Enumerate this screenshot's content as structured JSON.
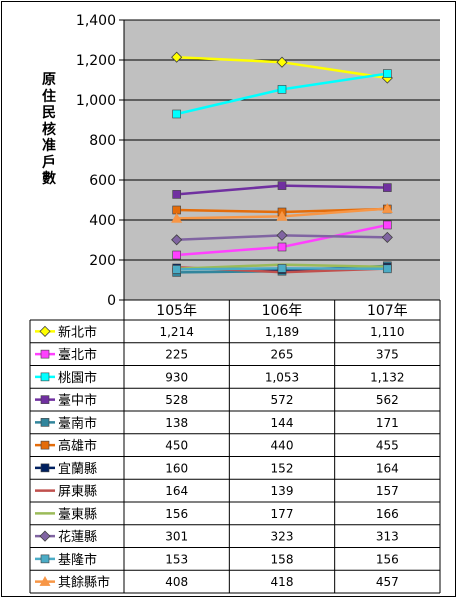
{
  "chart_data": {
    "type": "line",
    "ylabel": "原住民核准戶數",
    "ylim": [
      0,
      1400
    ],
    "yticks": [
      "0",
      "200",
      "400",
      "600",
      "800",
      "1,000",
      "1,200",
      "1,400"
    ],
    "categories": [
      "105年",
      "106年",
      "107年"
    ],
    "grid": true,
    "legend": "data-table",
    "series": [
      {
        "name": "新北市",
        "values": [
          1214,
          1189,
          1110
        ],
        "labels": [
          "1,214",
          "1,189",
          "1,110"
        ],
        "color": "#ffff00",
        "marker": "diamond"
      },
      {
        "name": "臺北市",
        "values": [
          225,
          265,
          375
        ],
        "labels": [
          "225",
          "265",
          "375"
        ],
        "color": "#ff40ff",
        "marker": "square"
      },
      {
        "name": "桃園市",
        "values": [
          930,
          1053,
          1132
        ],
        "labels": [
          "930",
          "1,053",
          "1,132"
        ],
        "color": "#00ffff",
        "marker": "square"
      },
      {
        "name": "臺中市",
        "values": [
          528,
          572,
          562
        ],
        "labels": [
          "528",
          "572",
          "562"
        ],
        "color": "#7030a0",
        "marker": "square"
      },
      {
        "name": "臺南市",
        "values": [
          138,
          144,
          171
        ],
        "labels": [
          "138",
          "144",
          "171"
        ],
        "color": "#31859c",
        "marker": "square"
      },
      {
        "name": "高雄市",
        "values": [
          450,
          440,
          455
        ],
        "labels": [
          "450",
          "440",
          "455"
        ],
        "color": "#e46c0a",
        "marker": "square"
      },
      {
        "name": "宜蘭縣",
        "values": [
          160,
          152,
          164
        ],
        "labels": [
          "160",
          "152",
          "164"
        ],
        "color": "#002060",
        "marker": "square"
      },
      {
        "name": "屏東縣",
        "values": [
          164,
          139,
          157
        ],
        "labels": [
          "164",
          "139",
          "157"
        ],
        "color": "#c0504d",
        "marker": "none"
      },
      {
        "name": "臺東縣",
        "values": [
          156,
          177,
          166
        ],
        "labels": [
          "156",
          "177",
          "166"
        ],
        "color": "#9bbb59",
        "marker": "none"
      },
      {
        "name": "花蓮縣",
        "values": [
          301,
          323,
          313
        ],
        "labels": [
          "301",
          "323",
          "313"
        ],
        "color": "#8064a2",
        "marker": "diamond"
      },
      {
        "name": "基隆市",
        "values": [
          153,
          158,
          156
        ],
        "labels": [
          "153",
          "158",
          "156"
        ],
        "color": "#4bacc6",
        "marker": "square"
      },
      {
        "name": "其餘縣市",
        "values": [
          408,
          418,
          457
        ],
        "labels": [
          "408",
          "418",
          "457"
        ],
        "color": "#f79646",
        "marker": "triangle"
      }
    ]
  }
}
